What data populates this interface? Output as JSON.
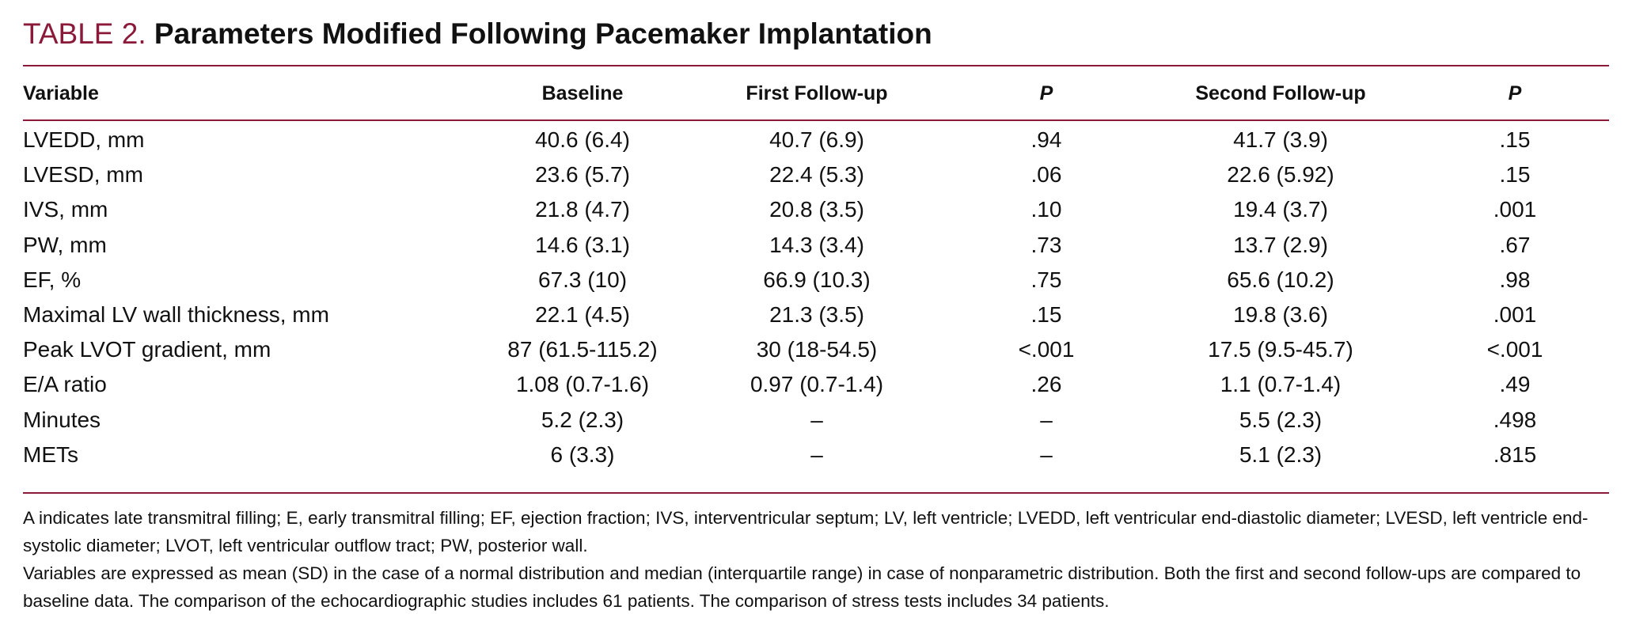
{
  "header": {
    "label": "TABLE 2.",
    "title": "Parameters Modified Following Pacemaker Implantation"
  },
  "table": {
    "columns": [
      "Variable",
      "Baseline",
      "First Follow-up",
      "P",
      "Second Follow-up",
      "P"
    ],
    "rows": [
      [
        "LVEDD, mm",
        "40.6 (6.4)",
        "40.7 (6.9)",
        ".94",
        "41.7 (3.9)",
        ".15"
      ],
      [
        "LVESD, mm",
        "23.6 (5.7)",
        "22.4 (5.3)",
        ".06",
        "22.6 (5.92)",
        ".15"
      ],
      [
        "IVS, mm",
        "21.8 (4.7)",
        "20.8 (3.5)",
        ".10",
        "19.4 (3.7)",
        ".001"
      ],
      [
        "PW, mm",
        "14.6 (3.1)",
        "14.3 (3.4)",
        ".73",
        "13.7 (2.9)",
        ".67"
      ],
      [
        "EF, %",
        "67.3 (10)",
        "66.9 (10.3)",
        ".75",
        "65.6 (10.2)",
        ".98"
      ],
      [
        "Maximal LV wall thickness, mm",
        "22.1 (4.5)",
        "21.3 (3.5)",
        ".15",
        "19.8 (3.6)",
        ".001"
      ],
      [
        "Peak LVOT gradient, mm",
        "87 (61.5-115.2)",
        "30 (18-54.5)",
        "<.001",
        "17.5 (9.5-45.7)",
        "<.001"
      ],
      [
        "E/A ratio",
        "1.08 (0.7-1.6)",
        "0.97 (0.7-1.4)",
        ".26",
        "1.1 (0.7-1.4)",
        ".49"
      ],
      [
        "Minutes",
        "5.2 (2.3)",
        "–",
        "–",
        "5.5 (2.3)",
        ".498"
      ],
      [
        "METs",
        "6 (3.3)",
        "–",
        "–",
        "5.1 (2.3)",
        ".815"
      ]
    ]
  },
  "footnotes": [
    "A indicates late transmitral filling; E, early transmitral filling; EF, ejection fraction; IVS, interventricular septum; LV, left ventricle; LVEDD, left ventricular end-diastolic diameter; LVESD, left ventricle end-systolic diameter; LVOT, left ventricular outflow tract; PW, posterior wall.",
    "Variables are expressed as mean (SD) in the case of a normal distribution and median (interquartile range) in case of nonparametric distribution. Both the first and second follow-ups are compared to baseline data. The comparison of the echocardiographic studies includes 61 patients. The comparison of stress tests includes 34 patients."
  ]
}
